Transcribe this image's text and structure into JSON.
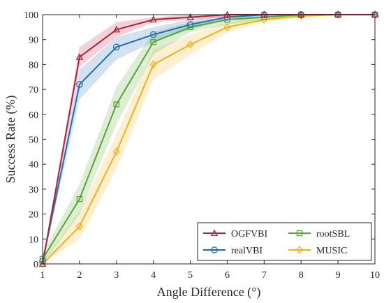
{
  "chart_data": {
    "type": "line",
    "title": "",
    "xlabel": "Angle Difference (°)",
    "ylabel": "Success Rate (%)",
    "x": [
      1,
      2,
      3,
      4,
      5,
      6,
      7,
      8,
      9,
      10
    ],
    "xlim": [
      1,
      10
    ],
    "ylim": [
      0,
      100
    ],
    "xticks": [
      "1",
      "2",
      "3",
      "4",
      "5",
      "6",
      "7",
      "8",
      "9",
      "10"
    ],
    "yticks": [
      "0",
      "10",
      "20",
      "30",
      "40",
      "50",
      "60",
      "70",
      "80",
      "90",
      "100"
    ],
    "grid": false,
    "legend_position": "bottom-right",
    "legend_columns": 2,
    "series": [
      {
        "name": "OGFVBI",
        "color": "#b3203a",
        "marker": "triangle",
        "values": [
          0,
          83,
          94,
          98,
          99,
          100,
          100,
          100,
          100,
          100
        ],
        "band_lower": [
          0,
          79,
          91,
          97,
          98,
          99,
          100,
          100,
          100,
          100
        ],
        "band_upper": [
          0,
          87,
          97,
          99,
          100,
          100,
          100,
          100,
          100,
          100
        ]
      },
      {
        "name": "realVBI",
        "color": "#1f6fb2",
        "marker": "circle",
        "values": [
          1,
          72,
          87,
          92,
          96,
          99,
          100,
          100,
          100,
          100
        ],
        "band_lower": [
          0,
          66,
          82,
          89,
          94,
          98,
          99,
          100,
          100,
          100
        ],
        "band_upper": [
          2,
          78,
          91,
          95,
          98,
          100,
          100,
          100,
          100,
          100
        ]
      },
      {
        "name": "rootSBL",
        "color": "#56a630",
        "marker": "square",
        "values": [
          2,
          26,
          64,
          89,
          95,
          98,
          99,
          100,
          100,
          100
        ],
        "band_lower": [
          0,
          20,
          56,
          84,
          93,
          96,
          98,
          99,
          100,
          100
        ],
        "band_upper": [
          4,
          32,
          71,
          93,
          97,
          99,
          100,
          100,
          100,
          100
        ]
      },
      {
        "name": "MUSIC",
        "color": "#f0b21a",
        "marker": "diamond",
        "values": [
          0,
          15,
          45,
          80,
          88,
          95,
          98,
          99.5,
          100,
          100
        ],
        "band_lower": [
          0,
          10,
          38,
          74,
          84,
          93,
          97,
          99,
          100,
          100
        ],
        "band_upper": [
          1,
          21,
          52,
          86,
          92,
          97,
          99,
          100,
          100,
          100
        ]
      }
    ]
  }
}
